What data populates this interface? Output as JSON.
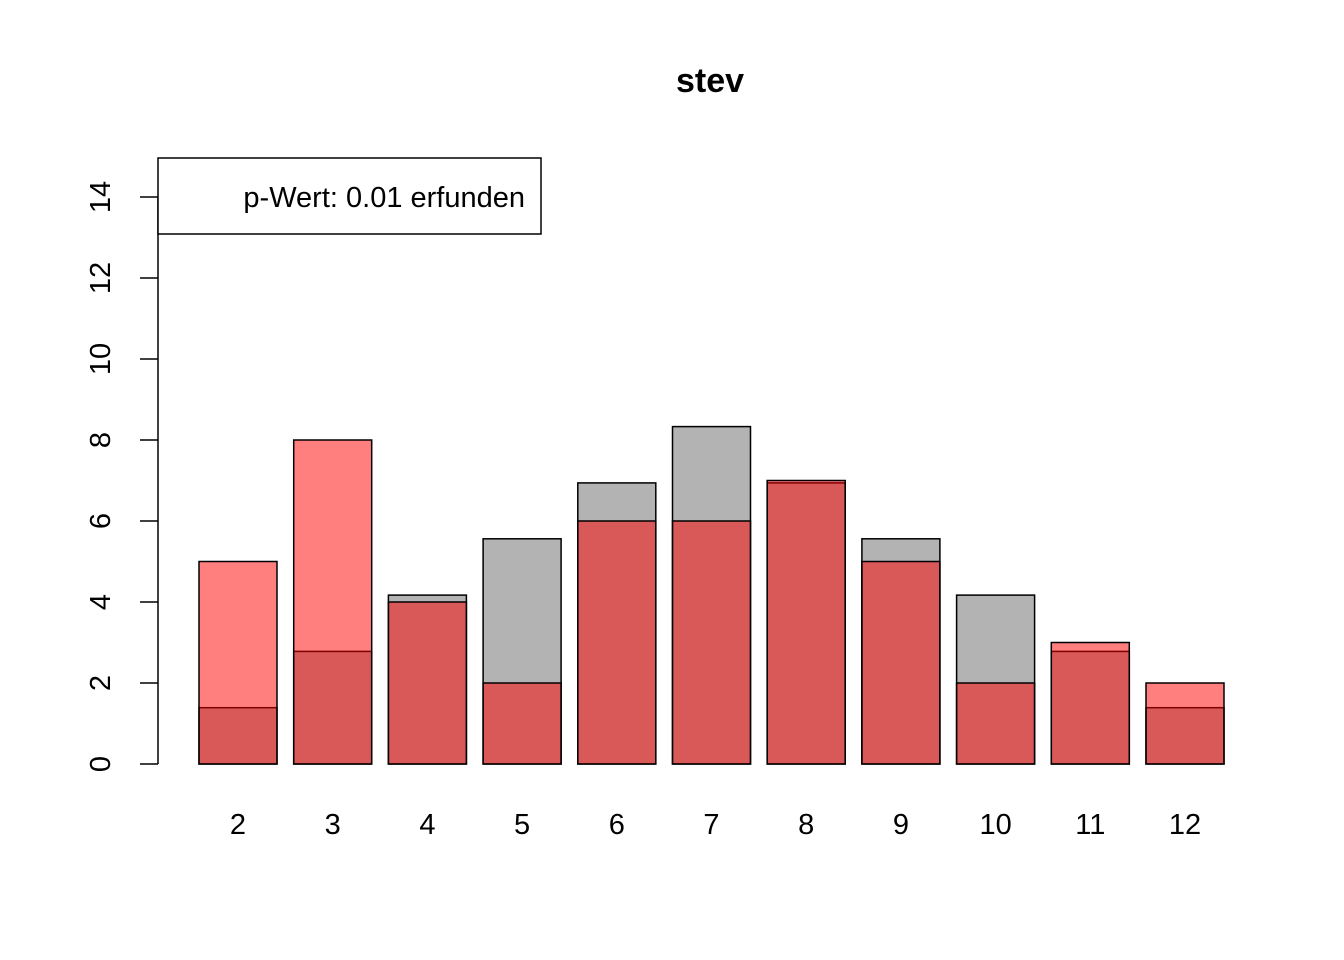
{
  "chart_data": {
    "type": "bar",
    "title": "stev",
    "xlabel": "",
    "ylabel": "",
    "categories": [
      "2",
      "3",
      "4",
      "5",
      "6",
      "7",
      "8",
      "9",
      "10",
      "11",
      "12"
    ],
    "series": [
      {
        "values": [
          1.39,
          2.78,
          4.17,
          5.56,
          6.94,
          8.33,
          6.94,
          5.56,
          4.17,
          2.78,
          1.39
        ],
        "color": "#b3b3b3"
      },
      {
        "values": [
          5,
          8,
          4,
          2,
          6,
          6,
          7,
          5,
          2,
          3,
          2
        ],
        "color": "#ff0000",
        "opacity": 0.5
      }
    ],
    "ylim": [
      0,
      15
    ],
    "yticks": [
      0,
      2,
      4,
      6,
      8,
      10,
      12,
      14
    ],
    "legend": {
      "text": "p-Wert: 0.01 erfunden",
      "position": "top-left"
    },
    "grid": false
  }
}
